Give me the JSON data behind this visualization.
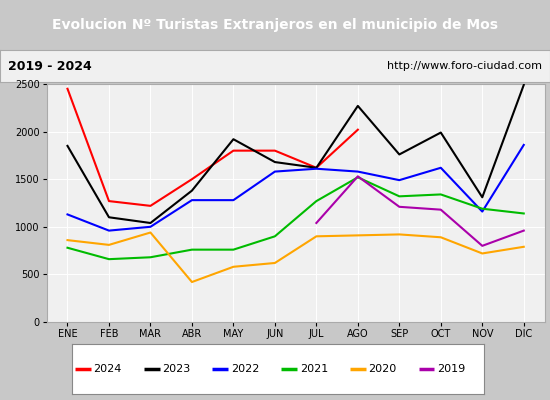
{
  "title": "Evolucion Nº Turistas Extranjeros en el municipio de Mos",
  "subtitle_left": "2019 - 2024",
  "subtitle_right": "http://www.foro-ciudad.com",
  "months": [
    "ENE",
    "FEB",
    "MAR",
    "ABR",
    "MAY",
    "JUN",
    "JUL",
    "AGO",
    "SEP",
    "OCT",
    "NOV",
    "DIC"
  ],
  "series": {
    "2024": [
      2450,
      1270,
      1220,
      1500,
      1800,
      1800,
      1620,
      2020,
      null,
      null,
      null,
      null
    ],
    "2023": [
      1850,
      1100,
      1040,
      1380,
      1920,
      1680,
      1620,
      2270,
      1760,
      1990,
      1310,
      2490
    ],
    "2022": [
      1130,
      960,
      1000,
      1280,
      1280,
      1580,
      1610,
      1580,
      1490,
      1620,
      1160,
      1860
    ],
    "2021": [
      780,
      660,
      680,
      760,
      760,
      900,
      1270,
      1520,
      1320,
      1340,
      1190,
      1140
    ],
    "2020": [
      860,
      810,
      940,
      420,
      580,
      620,
      900,
      910,
      920,
      890,
      720,
      790
    ],
    "2019": [
      null,
      null,
      null,
      null,
      null,
      null,
      1040,
      1530,
      1210,
      1180,
      800,
      960
    ]
  },
  "colors": {
    "2024": "#ff0000",
    "2023": "#000000",
    "2022": "#0000ff",
    "2021": "#00bb00",
    "2020": "#ffa500",
    "2019": "#aa00aa"
  },
  "ylim": [
    0,
    2500
  ],
  "yticks": [
    0,
    500,
    1000,
    1500,
    2000,
    2500
  ],
  "title_bg": "#4da6d9",
  "title_color": "#ffffff",
  "subtitle_bg": "#f0f0f0",
  "plot_bg": "#f0f0f0",
  "outer_bg": "#c8c8c8",
  "linewidth": 1.5,
  "title_fontsize": 10,
  "legend_fontsize": 8,
  "tick_fontsize": 7
}
